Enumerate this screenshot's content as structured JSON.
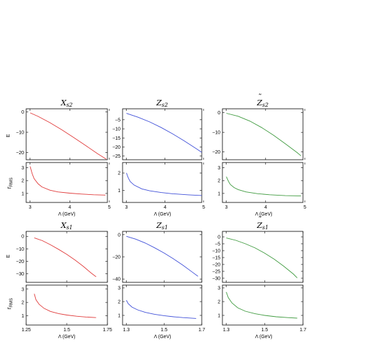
{
  "figure": {
    "y_labels": {
      "energy": "E",
      "rms_main": "r",
      "rms_sub": "RMS"
    },
    "x_label": "Λ (GeV)"
  },
  "chart_data": [
    {
      "type": "line",
      "name": "Xs2-E",
      "title": {
        "base": "X",
        "sub": "s2",
        "tilde": false
      },
      "xlim": [
        2.9,
        4.95
      ],
      "ylim": [
        -23.5,
        1.5
      ],
      "xticks": [
        3,
        4,
        5
      ],
      "yticks": [
        0,
        -10,
        -20
      ],
      "color": "#e03a3a",
      "x": [
        3.0,
        3.2,
        3.5,
        3.8,
        4.1,
        4.4,
        4.7,
        4.92
      ],
      "y": [
        -0.5,
        -2.2,
        -5.3,
        -8.8,
        -12.6,
        -16.5,
        -20.5,
        -23.2
      ]
    },
    {
      "type": "line",
      "name": "Xs2-r",
      "xlim": [
        2.9,
        4.95
      ],
      "ylim": [
        0.3,
        3.4
      ],
      "xticks": [
        3,
        4,
        5
      ],
      "yticks": [
        1,
        2,
        3
      ],
      "xticklabels": [
        "3",
        "4",
        "5"
      ],
      "color": "#e03a3a",
      "x": [
        3.0,
        3.05,
        3.1,
        3.2,
        3.3,
        3.5,
        3.7,
        4.0,
        4.3,
        4.6,
        4.9
      ],
      "y": [
        3.1,
        2.55,
        2.15,
        1.75,
        1.5,
        1.25,
        1.12,
        1.02,
        0.95,
        0.9,
        0.87
      ]
    },
    {
      "type": "line",
      "name": "Zs2-E",
      "title": {
        "base": "Z",
        "sub": "s2",
        "tilde": false
      },
      "xlim": [
        2.9,
        4.95
      ],
      "ylim": [
        -27,
        1
      ],
      "xticks": [
        3,
        4,
        5
      ],
      "yticks": [
        -5,
        -10,
        -15,
        -20,
        -25
      ],
      "color": "#3f4fd8",
      "x": [
        3.0,
        3.3,
        3.6,
        3.9,
        4.2,
        4.5,
        4.8,
        4.95
      ],
      "y": [
        -1.5,
        -3.6,
        -6.2,
        -9.3,
        -12.8,
        -16.7,
        -20.8,
        -22.9
      ]
    },
    {
      "type": "line",
      "name": "Zs2-r",
      "xlim": [
        2.9,
        4.95
      ],
      "ylim": [
        0.3,
        2.6
      ],
      "xticks": [
        3,
        4,
        5
      ],
      "yticks": [
        1,
        2
      ],
      "xticklabels": [
        "3",
        "4",
        "5"
      ],
      "color": "#3f4fd8",
      "x": [
        3.0,
        3.05,
        3.1,
        3.2,
        3.4,
        3.6,
        3.9,
        4.2,
        4.6,
        4.95
      ],
      "y": [
        2.0,
        1.7,
        1.5,
        1.3,
        1.08,
        0.97,
        0.87,
        0.8,
        0.74,
        0.7
      ]
    },
    {
      "type": "line",
      "name": "Zts2-E",
      "title": {
        "base": "Z",
        "sub": "s2",
        "tilde": true
      },
      "xlim": [
        2.9,
        4.95
      ],
      "ylim": [
        -24,
        2
      ],
      "xticks": [
        3,
        4,
        5
      ],
      "yticks": [
        0,
        -10,
        -20
      ],
      "color": "#3e9a3e",
      "x": [
        3.0,
        3.3,
        3.6,
        3.9,
        4.2,
        4.5,
        4.8,
        4.9
      ],
      "y": [
        -0.3,
        -1.8,
        -4.3,
        -7.6,
        -11.5,
        -15.8,
        -20.3,
        -22.0
      ]
    },
    {
      "type": "line",
      "name": "Zts2-r",
      "xlim": [
        2.9,
        4.95
      ],
      "ylim": [
        0.3,
        3.4
      ],
      "xticks": [
        3,
        4,
        5
      ],
      "yticks": [
        1,
        2,
        3
      ],
      "xticklabels": [
        "3",
        "4",
        "5"
      ],
      "color": "#3e9a3e",
      "x": [
        3.0,
        3.05,
        3.1,
        3.2,
        3.3,
        3.5,
        3.8,
        4.1,
        4.5,
        4.9
      ],
      "y": [
        2.3,
        1.95,
        1.7,
        1.45,
        1.3,
        1.12,
        0.98,
        0.9,
        0.83,
        0.8
      ]
    },
    {
      "type": "line",
      "name": "Xs1-E",
      "title": {
        "base": "X",
        "sub": "s1",
        "tilde": false
      },
      "xlim": [
        1.25,
        1.75
      ],
      "ylim": [
        -37,
        4
      ],
      "xticks": [
        1.25,
        1.5,
        1.75
      ],
      "yticks": [
        0,
        -10,
        -20,
        -30
      ],
      "color": "#e03a3a",
      "x": [
        1.3,
        1.35,
        1.4,
        1.45,
        1.5,
        1.55,
        1.6,
        1.65,
        1.68
      ],
      "y": [
        -1.2,
        -3.5,
        -6.8,
        -10.5,
        -14.5,
        -19.0,
        -24.0,
        -29.5,
        -32.5
      ]
    },
    {
      "type": "line",
      "name": "Xs1-r",
      "xlim": [
        1.25,
        1.75
      ],
      "ylim": [
        0.3,
        3.3
      ],
      "xticks": [
        1.25,
        1.5,
        1.75
      ],
      "yticks": [
        1,
        2,
        3
      ],
      "xticklabels": [
        "1.25",
        "1.5",
        "1.75"
      ],
      "color": "#e03a3a",
      "x": [
        1.3,
        1.31,
        1.33,
        1.36,
        1.4,
        1.45,
        1.5,
        1.56,
        1.62,
        1.68
      ],
      "y": [
        2.65,
        2.2,
        1.85,
        1.55,
        1.32,
        1.16,
        1.05,
        0.96,
        0.9,
        0.86
      ]
    },
    {
      "type": "line",
      "name": "Zs1-E",
      "title": {
        "base": "Z",
        "sub": "s1",
        "tilde": false
      },
      "xlim": [
        1.28,
        1.7
      ],
      "ylim": [
        -43,
        3
      ],
      "xticks": [
        1.3,
        1.5,
        1.7
      ],
      "yticks": [
        0,
        -20,
        -40
      ],
      "color": "#3f4fd8",
      "x": [
        1.3,
        1.35,
        1.4,
        1.45,
        1.5,
        1.55,
        1.6,
        1.65,
        1.68
      ],
      "y": [
        -1.5,
        -4.0,
        -7.5,
        -11.8,
        -16.5,
        -21.8,
        -27.5,
        -33.8,
        -37.5
      ]
    },
    {
      "type": "line",
      "name": "Zs1-r",
      "xlim": [
        1.28,
        1.7
      ],
      "ylim": [
        0.3,
        3.2
      ],
      "xticks": [
        1.3,
        1.5,
        1.7
      ],
      "yticks": [
        1,
        2,
        3
      ],
      "xticklabels": [
        "1.3",
        "1.5",
        "1.7"
      ],
      "color": "#3f4fd8",
      "x": [
        1.3,
        1.31,
        1.33,
        1.36,
        1.4,
        1.45,
        1.5,
        1.55,
        1.6,
        1.67
      ],
      "y": [
        2.1,
        1.85,
        1.6,
        1.4,
        1.22,
        1.08,
        0.98,
        0.9,
        0.84,
        0.78
      ]
    },
    {
      "type": "line",
      "name": "Zts1-E",
      "title": {
        "base": "Z",
        "sub": "s1",
        "tilde": true
      },
      "xlim": [
        1.28,
        1.7
      ],
      "ylim": [
        -33,
        4
      ],
      "xticks": [
        1.3,
        1.5,
        1.7
      ],
      "yticks": [
        0,
        -5,
        -10,
        -15,
        -20,
        -25,
        -30
      ],
      "color": "#3e9a3e",
      "x": [
        1.3,
        1.35,
        1.4,
        1.45,
        1.5,
        1.55,
        1.6,
        1.65,
        1.67
      ],
      "y": [
        -0.8,
        -2.5,
        -5.0,
        -8.0,
        -11.8,
        -16.2,
        -21.3,
        -27.0,
        -29.8
      ]
    },
    {
      "type": "line",
      "name": "Zts1-r",
      "xlim": [
        1.28,
        1.7
      ],
      "ylim": [
        0.3,
        3.2
      ],
      "xticks": [
        1.3,
        1.5,
        1.7
      ],
      "yticks": [
        1,
        2,
        3
      ],
      "xticklabels": [
        "1.3",
        "1.5",
        "1.7"
      ],
      "color": "#3e9a3e",
      "x": [
        1.3,
        1.31,
        1.33,
        1.36,
        1.4,
        1.45,
        1.5,
        1.56,
        1.62,
        1.67
      ],
      "y": [
        2.7,
        2.3,
        1.9,
        1.55,
        1.3,
        1.12,
        1.0,
        0.9,
        0.84,
        0.8
      ]
    }
  ]
}
